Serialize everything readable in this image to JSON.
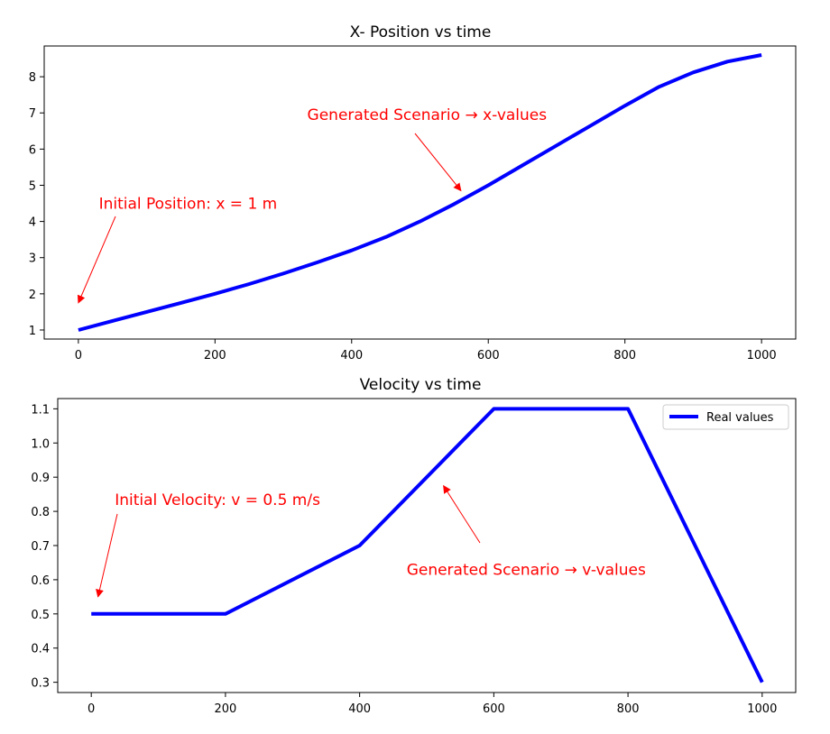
{
  "chart_data": [
    {
      "type": "line",
      "title": "X- Position vs time",
      "xlabel": "",
      "ylabel": "",
      "xlim": [
        -50,
        1050
      ],
      "ylim": [
        0.75,
        8.85
      ],
      "xticks": [
        0,
        200,
        400,
        600,
        800,
        1000
      ],
      "yticks": [
        1,
        2,
        3,
        4,
        5,
        6,
        7,
        8
      ],
      "grid": false,
      "line_color": "#0000ff",
      "series": [
        {
          "x": [
            0,
            50,
            100,
            150,
            200,
            250,
            300,
            350,
            400,
            450,
            500,
            550,
            600,
            650,
            700,
            750,
            800,
            850,
            900,
            950,
            1000
          ],
          "values": [
            1.0,
            1.25,
            1.5,
            1.75,
            2.0,
            2.27,
            2.56,
            2.87,
            3.2,
            3.57,
            4.0,
            4.48,
            5.0,
            5.55,
            6.1,
            6.65,
            7.2,
            7.72,
            8.12,
            8.42,
            8.6
          ]
        }
      ],
      "annotations": [
        {
          "text": "Initial Position: x = 1 m",
          "xy": [
            0,
            1.75
          ],
          "xytext": [
            30,
            4.5
          ],
          "color": "#ff0000"
        },
        {
          "text": "Generated Scenario → x-values",
          "xy": [
            560,
            4.85
          ],
          "xytext": [
            335,
            6.95
          ],
          "color": "#ff0000"
        }
      ]
    },
    {
      "type": "line",
      "title": "Velocity vs time",
      "xlabel": "",
      "ylabel": "",
      "xlim": [
        -50,
        1050
      ],
      "ylim": [
        0.27,
        1.13
      ],
      "xticks": [
        0,
        200,
        400,
        600,
        800,
        1000
      ],
      "yticks": [
        0.3,
        0.4,
        0.5,
        0.6,
        0.7,
        0.8,
        0.9,
        1.0,
        1.1
      ],
      "ytick_labels": [
        "0.3",
        "0.4",
        "0.5",
        "0.6",
        "0.7",
        "0.8",
        "0.9",
        "1.0",
        "1.1"
      ],
      "grid": false,
      "legend_position": "top-right",
      "line_color": "#0000ff",
      "series": [
        {
          "name": "Real values",
          "x": [
            0,
            200,
            400,
            600,
            800,
            1000
          ],
          "values": [
            0.5,
            0.5,
            0.7,
            1.1,
            1.1,
            0.3
          ]
        }
      ],
      "annotations": [
        {
          "text": "Initial Velocity: v = 0.5 m/s",
          "xy": [
            10,
            0.55
          ],
          "xytext": [
            35,
            0.835
          ],
          "color": "#ff0000"
        },
        {
          "text": "Generated Scenario → v-values",
          "xy": [
            525,
            0.875
          ],
          "xytext": [
            470,
            0.63
          ],
          "color": "#ff0000"
        }
      ]
    }
  ]
}
